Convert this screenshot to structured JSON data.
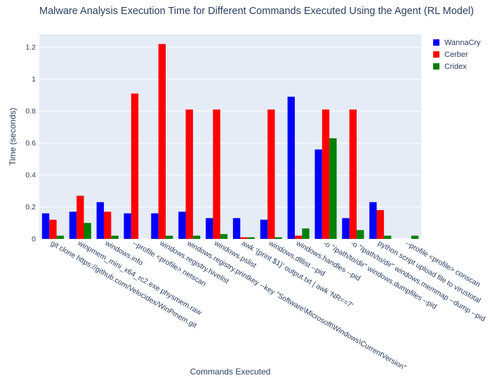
{
  "chart_data": {
    "type": "bar",
    "title": "Malware Analysis Execution Time for Different Commands Executed Using the Agent (RL Model)",
    "xlabel": "Commands Executed",
    "ylabel": "Time (seconds)",
    "ylim": [
      0,
      1.28
    ],
    "yticks": [
      0,
      0.2,
      0.4,
      0.6,
      0.8,
      1,
      1.2
    ],
    "ytick_labels": [
      "0",
      "0.2",
      "0.4",
      "0.6",
      "0.8",
      "1",
      "1.2"
    ],
    "grid": true,
    "legend_position": "top-right",
    "categories": [
      "git clone https://github.com/Velocidex/WinPmem.git",
      "winpmem_mini_x64_rc2.exe physmem.raw",
      "windows.info",
      "--profile <profile> netscan",
      "windows.registry.hivelist",
      "windows.registry.printkey --key \"Software\\Microsoft\\Windows\\CurrentVersion\"",
      "windows.pslist",
      "awk '{print $1}' output.txt | awk 'NR==7'",
      "windows.dlllist --pid",
      "windows.handles --pid",
      "-o \"/path/to/dir\" windows.dumpfiles --pid",
      "-o \"/path/to/dir\" windows.memmap --dump --pid",
      "python script upload file to virustotal",
      "--profile <profile> conscan"
    ],
    "series": [
      {
        "name": "WannaCry",
        "color": "#0000ff",
        "values": [
          0.16,
          0.17,
          0.23,
          0.16,
          0.16,
          0.17,
          0.13,
          0.13,
          0.12,
          0.89,
          0.56,
          0.13,
          0.23,
          0.0
        ]
      },
      {
        "name": "Cerber",
        "color": "#ff0000",
        "values": [
          0.12,
          0.27,
          0.17,
          0.91,
          1.22,
          0.81,
          0.81,
          0.01,
          0.81,
          0.02,
          0.81,
          0.81,
          0.18,
          0.0
        ]
      },
      {
        "name": "Cridex",
        "color": "#008000",
        "values": [
          0.02,
          0.1,
          0.02,
          0.0,
          0.02,
          0.02,
          0.03,
          0.01,
          0.01,
          0.065,
          0.63,
          0.055,
          0.02,
          0.02
        ]
      }
    ]
  }
}
